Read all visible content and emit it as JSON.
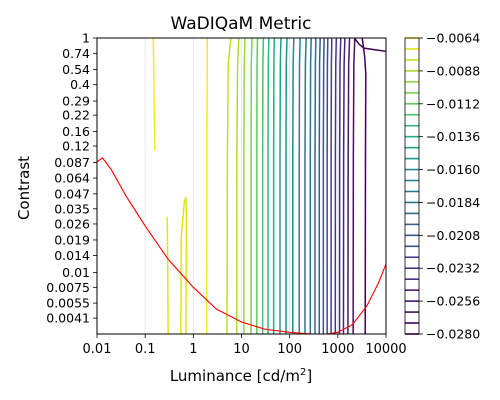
{
  "chart_data": {
    "type": "contour",
    "title": "WaDIQaM Metric",
    "xlabel_main": "Luminance [cd/m",
    "xlabel_sup": "2",
    "xlabel_end": "]",
    "ylabel": "Contrast",
    "x_scale": "log",
    "y_scale": "log",
    "xlim": [
      0.01,
      10000
    ],
    "ylim": [
      0.003,
      1
    ],
    "x_ticks": [
      {
        "value": 0.01,
        "label": "0.01"
      },
      {
        "value": 0.1,
        "label": "0.1"
      },
      {
        "value": 1,
        "label": "1"
      },
      {
        "value": 10,
        "label": "10"
      },
      {
        "value": 100,
        "label": "100"
      },
      {
        "value": 1000,
        "label": "1000"
      },
      {
        "value": 10000,
        "label": "10000"
      }
    ],
    "y_ticks": [
      {
        "value": 1,
        "label": "1"
      },
      {
        "value": 0.74,
        "label": "0.74"
      },
      {
        "value": 0.54,
        "label": "0.54"
      },
      {
        "value": 0.4,
        "label": "0.4"
      },
      {
        "value": 0.29,
        "label": "0.29"
      },
      {
        "value": 0.22,
        "label": "0.22"
      },
      {
        "value": 0.16,
        "label": "0.16"
      },
      {
        "value": 0.12,
        "label": "0.12"
      },
      {
        "value": 0.087,
        "label": "0.087"
      },
      {
        "value": 0.064,
        "label": "0.064"
      },
      {
        "value": 0.047,
        "label": "0.047"
      },
      {
        "value": 0.035,
        "label": "0.035"
      },
      {
        "value": 0.026,
        "label": "0.026"
      },
      {
        "value": 0.019,
        "label": "0.019"
      },
      {
        "value": 0.014,
        "label": "0.014"
      },
      {
        "value": 0.01,
        "label": "0.01"
      },
      {
        "value": 0.0075,
        "label": "0.0075"
      },
      {
        "value": 0.0055,
        "label": "0.0055"
      },
      {
        "value": 0.0041,
        "label": "0.0041"
      }
    ],
    "grid_x": true,
    "grid_y": false,
    "colorbar": {
      "min": -0.028,
      "max": -0.0064,
      "ticks": [
        {
          "value": -0.0064,
          "label": "−0.0064"
        },
        {
          "value": -0.0088,
          "label": "−0.0088"
        },
        {
          "value": -0.0112,
          "label": "−0.0112"
        },
        {
          "value": -0.0136,
          "label": "−0.0136"
        },
        {
          "value": -0.016,
          "label": "−0.0160"
        },
        {
          "value": -0.0184,
          "label": "−0.0184"
        },
        {
          "value": -0.0208,
          "label": "−0.0208"
        },
        {
          "value": -0.0232,
          "label": "−0.0232"
        },
        {
          "value": -0.0256,
          "label": "−0.0256"
        },
        {
          "value": -0.028,
          "label": "−0.0280"
        }
      ],
      "n_levels": 28,
      "colormap": "viridis"
    },
    "contour_lines": [
      {
        "level": -0.0064,
        "color": "#fde725",
        "points": [
          [
            0.148,
            1
          ],
          [
            0.155,
            0.2
          ],
          [
            0.158,
            0.11
          ]
        ]
      },
      {
        "level": -0.0064,
        "color": "#fde725",
        "points": [
          [
            1.95,
            1
          ],
          [
            1.92,
            0.15
          ],
          [
            1.9,
            0.003
          ]
        ]
      },
      {
        "level": -0.0072,
        "color": "#e2e418",
        "points": [
          [
            0.3,
            0.003
          ],
          [
            0.29,
            0.02
          ],
          [
            0.285,
            0.03
          ]
        ]
      },
      {
        "level": -0.0072,
        "color": "#e2e418",
        "points": [
          [
            0.55,
            0.003
          ],
          [
            0.56,
            0.02
          ],
          [
            0.65,
            0.04
          ],
          [
            0.7,
            0.044
          ],
          [
            0.72,
            0.03
          ],
          [
            0.7,
            0.003
          ]
        ]
      },
      {
        "level": -0.008,
        "color": "#c5e021",
        "points": [
          [
            6.0,
            1
          ],
          [
            5.3,
            0.6
          ],
          [
            5.1,
            0.1
          ],
          [
            5.0,
            0.003
          ]
        ]
      },
      {
        "level": -0.0088,
        "color": "#addc30",
        "points": [
          [
            8.8,
            1
          ],
          [
            8.3,
            0.6
          ],
          [
            8.0,
            0.1
          ],
          [
            8.0,
            0.003
          ]
        ]
      },
      {
        "level": -0.0096,
        "color": "#93d741",
        "points": [
          [
            11.8,
            1
          ],
          [
            11.4,
            0.6
          ],
          [
            11.2,
            0.1
          ],
          [
            11.2,
            0.003
          ]
        ]
      },
      {
        "level": -0.0104,
        "color": "#7ad151",
        "points": [
          [
            16.5,
            1
          ],
          [
            16.0,
            0.6
          ],
          [
            15.8,
            0.1
          ],
          [
            15.8,
            0.003
          ]
        ]
      },
      {
        "level": -0.0112,
        "color": "#60ca60",
        "points": [
          [
            21.5,
            1
          ],
          [
            21.0,
            0.6
          ],
          [
            20.8,
            0.1
          ],
          [
            20.8,
            0.003
          ]
        ]
      },
      {
        "level": -0.012,
        "color": "#4ac16d",
        "points": [
          [
            28.5,
            1
          ],
          [
            27.8,
            0.6
          ],
          [
            27.5,
            0.1
          ],
          [
            27.5,
            0.003
          ]
        ]
      },
      {
        "level": -0.0128,
        "color": "#35b779",
        "points": [
          [
            37,
            1
          ],
          [
            36,
            0.6
          ],
          [
            35.5,
            0.1
          ],
          [
            35.5,
            0.003
          ]
        ]
      },
      {
        "level": -0.0136,
        "color": "#27ad81",
        "points": [
          [
            48,
            1
          ],
          [
            47,
            0.6
          ],
          [
            46.5,
            0.1
          ],
          [
            46.5,
            0.003
          ]
        ]
      },
      {
        "level": -0.0144,
        "color": "#1fa188",
        "points": [
          [
            66,
            1
          ],
          [
            64,
            0.6
          ],
          [
            63,
            0.1
          ],
          [
            63,
            0.003
          ]
        ]
      },
      {
        "level": -0.0152,
        "color": "#1f968b",
        "points": [
          [
            88,
            1
          ],
          [
            85,
            0.6
          ],
          [
            84,
            0.1
          ],
          [
            84,
            0.003
          ]
        ]
      },
      {
        "level": -0.016,
        "color": "#228b8d",
        "points": [
          [
            122,
            1
          ],
          [
            118,
            0.6
          ],
          [
            116,
            0.1
          ],
          [
            116,
            0.003
          ]
        ]
      },
      {
        "level": -0.0168,
        "color": "#25838e",
        "points": [
          [
            165,
            1
          ],
          [
            160,
            0.6
          ],
          [
            158,
            0.1
          ],
          [
            158,
            0.003
          ]
        ]
      },
      {
        "level": -0.0176,
        "color": "#29798e",
        "points": [
          [
            220,
            1
          ],
          [
            212,
            0.6
          ],
          [
            208,
            0.1
          ],
          [
            208,
            0.003
          ]
        ]
      },
      {
        "level": -0.0184,
        "color": "#2d718e",
        "points": [
          [
            280,
            1
          ],
          [
            272,
            0.6
          ],
          [
            268,
            0.1
          ],
          [
            268,
            0.003
          ]
        ]
      },
      {
        "level": -0.0192,
        "color": "#31688e",
        "points": [
          [
            350,
            1
          ],
          [
            342,
            0.6
          ],
          [
            336,
            0.1
          ],
          [
            336,
            0.003
          ]
        ]
      },
      {
        "level": -0.02,
        "color": "#355f8d",
        "points": [
          [
            430,
            1
          ],
          [
            418,
            0.6
          ],
          [
            412,
            0.1
          ],
          [
            412,
            0.003
          ]
        ]
      },
      {
        "level": -0.0208,
        "color": "#39558c",
        "points": [
          [
            520,
            1
          ],
          [
            508,
            0.6
          ],
          [
            500,
            0.1
          ],
          [
            500,
            0.003
          ]
        ]
      },
      {
        "level": -0.0216,
        "color": "#3e4c8a",
        "points": [
          [
            620,
            1
          ],
          [
            608,
            0.6
          ],
          [
            600,
            0.1
          ],
          [
            600,
            0.003
          ]
        ]
      },
      {
        "level": -0.0224,
        "color": "#424086",
        "points": [
          [
            750,
            1
          ],
          [
            735,
            0.6
          ],
          [
            725,
            0.1
          ],
          [
            725,
            0.003
          ]
        ]
      },
      {
        "level": -0.0232,
        "color": "#453781",
        "points": [
          [
            930,
            1
          ],
          [
            905,
            0.6
          ],
          [
            890,
            0.1
          ],
          [
            885,
            0.003
          ]
        ]
      },
      {
        "level": -0.024,
        "color": "#472c7a",
        "points": [
          [
            1150,
            1
          ],
          [
            1110,
            0.6
          ],
          [
            1090,
            0.1
          ],
          [
            1085,
            0.003
          ]
        ]
      },
      {
        "level": -0.0248,
        "color": "#482173",
        "points": [
          [
            1400,
            1
          ],
          [
            1350,
            0.6
          ],
          [
            1320,
            0.1
          ],
          [
            1310,
            0.003
          ]
        ]
      },
      {
        "level": -0.0256,
        "color": "#481769",
        "points": [
          [
            1750,
            1
          ],
          [
            1680,
            0.6
          ],
          [
            1640,
            0.1
          ],
          [
            1620,
            0.003
          ]
        ]
      },
      {
        "level": -0.0264,
        "color": "#470e61",
        "points": [
          [
            2250,
            1
          ],
          [
            2150,
            0.6
          ],
          [
            2100,
            0.1
          ],
          [
            2080,
            0.003
          ]
        ]
      },
      {
        "level": -0.0272,
        "color": "#440154",
        "points": [
          [
            3200,
            1
          ],
          [
            3600,
            0.7
          ],
          [
            3800,
            0.5
          ],
          [
            3750,
            0.1
          ],
          [
            3700,
            0.003
          ]
        ]
      },
      {
        "level": -0.028,
        "color": "#440154",
        "points": [
          [
            2200,
            1
          ],
          [
            2800,
            0.88
          ],
          [
            3500,
            0.82
          ],
          [
            5200,
            0.8
          ],
          [
            10000,
            0.77
          ]
        ]
      }
    ],
    "red_curve": {
      "color": "#ff0000",
      "points": [
        [
          0.01,
          0.088
        ],
        [
          0.013,
          0.095
        ],
        [
          0.02,
          0.075
        ],
        [
          0.04,
          0.045
        ],
        [
          0.1,
          0.025
        ],
        [
          0.3,
          0.013
        ],
        [
          1,
          0.0075
        ],
        [
          3,
          0.0049
        ],
        [
          10,
          0.0038
        ],
        [
          30,
          0.0033
        ],
        [
          100,
          0.0031
        ],
        [
          300,
          0.003
        ],
        [
          600,
          0.003
        ],
        [
          1000,
          0.0031
        ],
        [
          2000,
          0.0036
        ],
        [
          4000,
          0.0052
        ],
        [
          7000,
          0.0082
        ],
        [
          10000,
          0.0118
        ]
      ]
    }
  }
}
